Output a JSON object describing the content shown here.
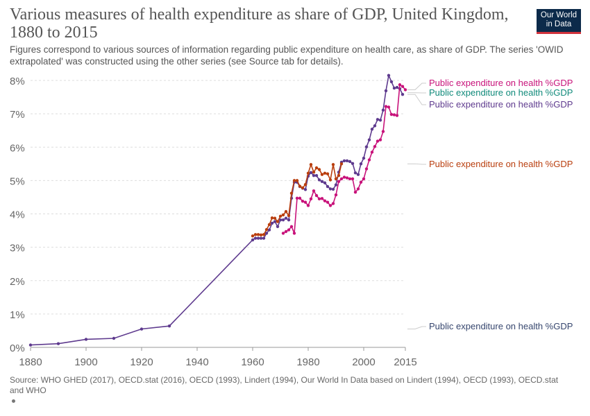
{
  "title": "Various measures of health expenditure as share of GDP, United Kingdom, 1880 to 2015",
  "subtitle": "Figures correspond to various sources of information regarding public expenditure on health care, as share of GDP. The series 'OWID extrapolated' was constructed using the other series (see Source tab for details).",
  "logo": {
    "line1": "Our World",
    "line2": "in Data"
  },
  "source": "Source: WHO GHED (2017), OECD.stat (2016), OECD (1993), Lindert (1994), Our World In Data based on Lindert (1994), OECD (1993), OECD.stat and WHO",
  "chart_data": {
    "type": "line",
    "x_ticks": [
      "1880",
      "1900",
      "1920",
      "1940",
      "1960",
      "1980",
      "2000",
      "2015"
    ],
    "y_ticks": [
      "0%",
      "1%",
      "2%",
      "3%",
      "4%",
      "5%",
      "6%",
      "7%",
      "8%"
    ],
    "xlim": [
      1880,
      2015
    ],
    "ylim": [
      0,
      8
    ],
    "grid": "horizontal dashed",
    "series": [
      {
        "name": "Public expenditure on health %GDP",
        "color": "#5e3a8e",
        "points": [
          [
            1880,
            0.07
          ],
          [
            1890,
            0.11
          ],
          [
            1900,
            0.24
          ],
          [
            1910,
            0.27
          ],
          [
            1920,
            0.55
          ],
          [
            1930,
            0.64
          ],
          [
            1960,
            3.22
          ],
          [
            1961,
            3.27
          ],
          [
            1962,
            3.27
          ],
          [
            1963,
            3.27
          ],
          [
            1964,
            3.27
          ],
          [
            1965,
            3.42
          ],
          [
            1966,
            3.52
          ],
          [
            1967,
            3.72
          ],
          [
            1968,
            3.77
          ],
          [
            1969,
            3.62
          ],
          [
            1970,
            3.82
          ],
          [
            1971,
            3.82
          ],
          [
            1972,
            3.87
          ],
          [
            1973,
            3.82
          ],
          [
            1974,
            4.47
          ],
          [
            1975,
            4.95
          ],
          [
            1976,
            4.95
          ],
          [
            1977,
            4.82
          ],
          [
            1978,
            4.77
          ],
          [
            1979,
            4.73
          ],
          [
            1980,
            5.13
          ],
          [
            1981,
            5.24
          ],
          [
            1982,
            5.15
          ],
          [
            1983,
            5.15
          ],
          [
            1984,
            5.02
          ],
          [
            1985,
            4.97
          ],
          [
            1986,
            4.93
          ],
          [
            1987,
            4.82
          ],
          [
            1988,
            4.75
          ],
          [
            1989,
            4.74
          ],
          [
            1990,
            4.87
          ],
          [
            1991,
            5.25
          ],
          [
            1992,
            5.55
          ],
          [
            1993,
            5.59
          ],
          [
            1994,
            5.59
          ],
          [
            1995,
            5.57
          ],
          [
            1996,
            5.51
          ],
          [
            1997,
            5.23
          ],
          [
            1998,
            5.18
          ],
          [
            1999,
            5.5
          ],
          [
            2000,
            5.67
          ],
          [
            2001,
            6.01
          ],
          [
            2002,
            6.22
          ],
          [
            2003,
            6.54
          ],
          [
            2004,
            6.64
          ],
          [
            2005,
            6.83
          ],
          [
            2006,
            6.81
          ],
          [
            2007,
            7.11
          ],
          [
            2008,
            7.69
          ],
          [
            2009,
            8.15
          ],
          [
            2010,
            7.96
          ],
          [
            2011,
            7.77
          ],
          [
            2012,
            7.79
          ],
          [
            2013,
            7.75
          ],
          [
            2014,
            7.58
          ]
        ]
      },
      {
        "name": "Public expenditure on health %GDP",
        "color": "#b93e0e",
        "points": [
          [
            1960,
            3.34
          ],
          [
            1961,
            3.38
          ],
          [
            1962,
            3.38
          ],
          [
            1963,
            3.37
          ],
          [
            1964,
            3.38
          ],
          [
            1965,
            3.53
          ],
          [
            1966,
            3.68
          ],
          [
            1967,
            3.88
          ],
          [
            1968,
            3.87
          ],
          [
            1969,
            3.77
          ],
          [
            1970,
            3.93
          ],
          [
            1971,
            3.97
          ],
          [
            1972,
            4.07
          ],
          [
            1973,
            3.95
          ],
          [
            1974,
            4.62
          ],
          [
            1975,
            5.0
          ],
          [
            1976,
            5.0
          ],
          [
            1977,
            4.83
          ],
          [
            1978,
            4.78
          ],
          [
            1979,
            4.88
          ],
          [
            1980,
            5.22
          ],
          [
            1981,
            5.48
          ],
          [
            1982,
            5.25
          ],
          [
            1983,
            5.38
          ],
          [
            1984,
            5.33
          ],
          [
            1985,
            5.18
          ],
          [
            1986,
            5.22
          ],
          [
            1987,
            5.2
          ],
          [
            1988,
            5.02
          ],
          [
            1989,
            5.48
          ],
          [
            1990,
            5.05
          ],
          [
            1991,
            5.15
          ],
          [
            1992,
            5.5
          ]
        ]
      },
      {
        "name": "Public expenditure on health %GDP",
        "color": "#c8127a",
        "points": [
          [
            1971,
            3.42
          ],
          [
            1972,
            3.47
          ],
          [
            1973,
            3.52
          ],
          [
            1974,
            3.62
          ],
          [
            1975,
            3.42
          ],
          [
            1976,
            4.47
          ],
          [
            1977,
            4.47
          ],
          [
            1978,
            4.38
          ],
          [
            1979,
            4.35
          ],
          [
            1980,
            4.25
          ],
          [
            1981,
            4.45
          ],
          [
            1982,
            4.69
          ],
          [
            1983,
            4.55
          ],
          [
            1984,
            4.45
          ],
          [
            1985,
            4.46
          ],
          [
            1986,
            4.39
          ],
          [
            1987,
            4.35
          ],
          [
            1988,
            4.25
          ],
          [
            1989,
            4.31
          ],
          [
            1990,
            4.57
          ],
          [
            1991,
            4.97
          ],
          [
            1992,
            5.05
          ],
          [
            1993,
            5.1
          ],
          [
            1994,
            5.08
          ],
          [
            1995,
            5.05
          ],
          [
            1996,
            5.05
          ],
          [
            1997,
            4.65
          ],
          [
            1998,
            4.75
          ],
          [
            1999,
            4.95
          ],
          [
            2000,
            5.05
          ],
          [
            2001,
            5.35
          ],
          [
            2002,
            5.62
          ],
          [
            2003,
            5.85
          ],
          [
            2004,
            6.02
          ],
          [
            2005,
            6.18
          ],
          [
            2006,
            6.22
          ],
          [
            2007,
            6.47
          ],
          [
            2008,
            7.22
          ],
          [
            2009,
            7.2
          ],
          [
            2010,
            6.98
          ],
          [
            2011,
            6.97
          ],
          [
            2012,
            6.95
          ],
          [
            2013,
            7.87
          ],
          [
            2014,
            7.82
          ],
          [
            2015,
            7.72
          ]
        ]
      }
    ],
    "legend_labels": [
      {
        "text": "Public expenditure on health %GDP",
        "color": "#c8127a",
        "anchor_y": 7.72
      },
      {
        "text": "Public expenditure on health %GDP",
        "color": "#0f8a7a",
        "anchor_y": 7.63
      },
      {
        "text": "Public expenditure on health %GDP",
        "color": "#5e3a8e",
        "anchor_y": 7.58
      },
      {
        "text": "Public expenditure on health %GDP",
        "color": "#b93e0e",
        "anchor_y": 5.5
      },
      {
        "text": "Public expenditure on health %GDP",
        "color": "#36466e",
        "anchor_y": 0.55
      }
    ]
  }
}
